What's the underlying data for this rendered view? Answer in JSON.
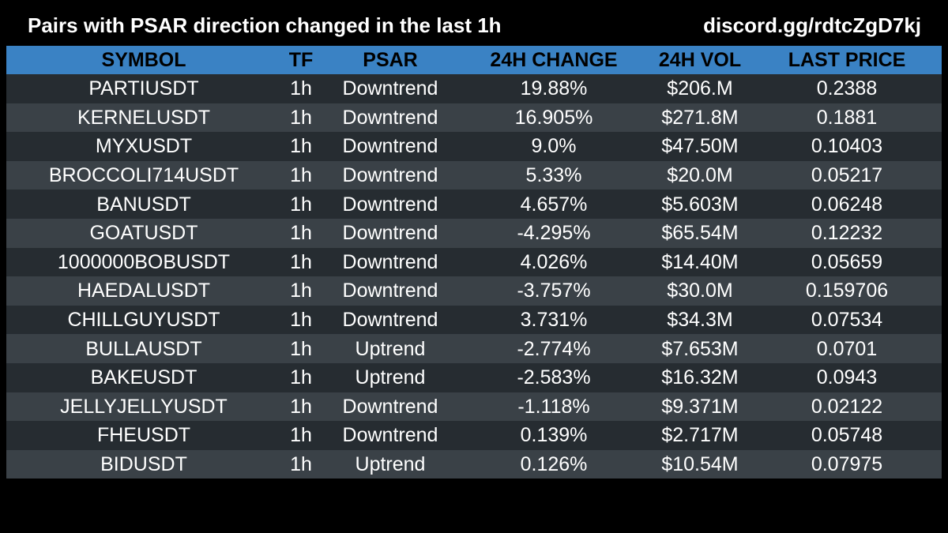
{
  "header": {
    "title": "Pairs with PSAR direction changed in the last 1h",
    "link": "discord.gg/rdtcZgD7kj"
  },
  "colors": {
    "background": "#000000",
    "header_row": "#3a82c4",
    "row_dark": "#262c31",
    "row_light": "#3a4147",
    "text": "#ffffff",
    "header_text": "#000000"
  },
  "table": {
    "columns": [
      "SYMBOL",
      "TF",
      "PSAR",
      "24H CHANGE",
      "24H VOL",
      "LAST PRICE"
    ],
    "rows": [
      [
        "PARTIUSDT",
        "1h",
        "Downtrend",
        "19.88%",
        "$206.M",
        "0.2388"
      ],
      [
        "KERNELUSDT",
        "1h",
        "Downtrend",
        "16.905%",
        "$271.8M",
        "0.1881"
      ],
      [
        "MYXUSDT",
        "1h",
        "Downtrend",
        "9.0%",
        "$47.50M",
        "0.10403"
      ],
      [
        "BROCCOLI714USDT",
        "1h",
        "Downtrend",
        "5.33%",
        "$20.0M",
        "0.05217"
      ],
      [
        "BANUSDT",
        "1h",
        "Downtrend",
        "4.657%",
        "$5.603M",
        "0.06248"
      ],
      [
        "GOATUSDT",
        "1h",
        "Downtrend",
        "-4.295%",
        "$65.54M",
        "0.12232"
      ],
      [
        "1000000BOBUSDT",
        "1h",
        "Downtrend",
        "4.026%",
        "$14.40M",
        "0.05659"
      ],
      [
        "HAEDALUSDT",
        "1h",
        "Downtrend",
        "-3.757%",
        "$30.0M",
        "0.159706"
      ],
      [
        "CHILLGUYUSDT",
        "1h",
        "Downtrend",
        "3.731%",
        "$34.3M",
        "0.07534"
      ],
      [
        "BULLAUSDT",
        "1h",
        "Uptrend",
        "-2.774%",
        "$7.653M",
        "0.0701"
      ],
      [
        "BAKEUSDT",
        "1h",
        "Uptrend",
        "-2.583%",
        "$16.32M",
        "0.0943"
      ],
      [
        "JELLYJELLYUSDT",
        "1h",
        "Downtrend",
        "-1.118%",
        "$9.371M",
        "0.02122"
      ],
      [
        "FHEUSDT",
        "1h",
        "Downtrend",
        "0.139%",
        "$2.717M",
        "0.05748"
      ],
      [
        "BIDUSDT",
        "1h",
        "Uptrend",
        "0.126%",
        "$10.54M",
        "0.07975"
      ]
    ]
  }
}
